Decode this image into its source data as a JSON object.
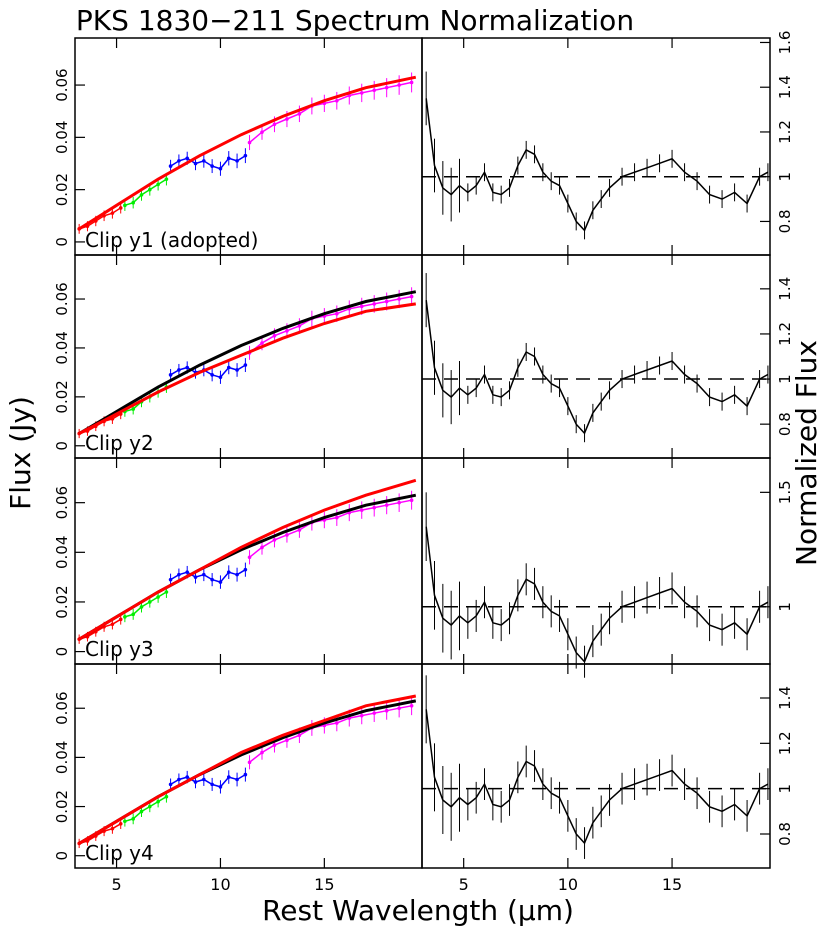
{
  "title": "PKS 1830−211 Spectrum Normalization",
  "xlabel": "Rest Wavelength (μm)",
  "ylabel_left": "Flux (Jy)",
  "ylabel_right": "Normalized Flux",
  "colors": {
    "SL2": "#ff0000",
    "SL1": "#00ee00",
    "LL2": "#0000ff",
    "LL1": "#ff00ff",
    "fit": "#ff0000",
    "adopted_fit": "#000000",
    "normalized": "#000000"
  },
  "chart_data": {
    "type": "line",
    "xlim": [
      3.0,
      19.7
    ],
    "x_ticks": [
      5,
      10,
      15
    ],
    "x_tick_labels": [
      "5",
      "10",
      "15"
    ],
    "flux_panels": [
      {
        "label": "Clip y1  (adopted)",
        "ylim": [
          -0.005,
          0.078
        ],
        "y_ticks": [
          0,
          0.02,
          0.04,
          0.06
        ],
        "y_tick_labels": [
          "0",
          "0.02",
          "0.04",
          "0.06"
        ],
        "show_adopted_fit": false,
        "fit_curve": {
          "x": [
            3.2,
            5,
            7,
            9,
            11,
            13,
            15,
            17,
            19.4
          ],
          "y": [
            0.005,
            0.014,
            0.024,
            0.033,
            0.041,
            0.048,
            0.054,
            0.059,
            0.063
          ]
        }
      },
      {
        "label": "Clip y2",
        "ylim": [
          -0.005,
          0.078
        ],
        "y_ticks": [
          0,
          0.02,
          0.04,
          0.06
        ],
        "y_tick_labels": [
          "0",
          "0.02",
          "0.04",
          "0.06"
        ],
        "show_adopted_fit": true,
        "fit_curve": {
          "x": [
            3.2,
            5,
            7,
            9,
            11,
            13,
            15,
            17,
            19.4
          ],
          "y": [
            0.005,
            0.013,
            0.022,
            0.03,
            0.037,
            0.044,
            0.05,
            0.055,
            0.058
          ]
        }
      },
      {
        "label": "Clip y3",
        "ylim": [
          -0.005,
          0.078
        ],
        "y_ticks": [
          0,
          0.02,
          0.04,
          0.06
        ],
        "y_tick_labels": [
          "0",
          "0.02",
          "0.04",
          "0.06"
        ],
        "show_adopted_fit": true,
        "fit_curve": {
          "x": [
            3.2,
            5,
            7,
            9,
            11,
            13,
            15,
            17,
            19.4
          ],
          "y": [
            0.005,
            0.014,
            0.024,
            0.033,
            0.042,
            0.05,
            0.057,
            0.063,
            0.069
          ]
        }
      },
      {
        "label": "Clip y4",
        "ylim": [
          -0.005,
          0.078
        ],
        "y_ticks": [
          0,
          0.02,
          0.04,
          0.06
        ],
        "y_tick_labels": [
          "0",
          "0.02",
          "0.04",
          "0.06"
        ],
        "show_adopted_fit": true,
        "fit_curve": {
          "x": [
            3.2,
            5,
            7,
            9,
            11,
            13,
            15,
            17,
            19.4
          ],
          "y": [
            0.005,
            0.014,
            0.024,
            0.033,
            0.042,
            0.049,
            0.055,
            0.061,
            0.065
          ]
        }
      }
    ],
    "adopted_fit": {
      "x": [
        3.2,
        5,
        7,
        9,
        11,
        13,
        15,
        17,
        19.4
      ],
      "y": [
        0.005,
        0.014,
        0.024,
        0.033,
        0.041,
        0.048,
        0.054,
        0.059,
        0.063
      ]
    },
    "flux_spectrum": {
      "SL2": {
        "x": [
          3.2,
          3.6,
          4.0,
          4.4,
          4.8,
          5.2
        ],
        "y": [
          0.005,
          0.006,
          0.008,
          0.01,
          0.011,
          0.013
        ]
      },
      "SL1": {
        "x": [
          5.4,
          5.8,
          6.2,
          6.6,
          7.0,
          7.4
        ],
        "y": [
          0.014,
          0.015,
          0.018,
          0.02,
          0.022,
          0.024
        ]
      },
      "LL2": {
        "x": [
          7.6,
          8.0,
          8.4,
          8.8,
          9.2,
          9.6,
          10.0,
          10.4,
          10.8,
          11.2
        ],
        "y": [
          0.029,
          0.031,
          0.032,
          0.03,
          0.031,
          0.029,
          0.028,
          0.032,
          0.031,
          0.033
        ]
      },
      "LL1": {
        "x": [
          11.4,
          12.0,
          12.6,
          13.2,
          13.8,
          14.4,
          15.0,
          15.6,
          16.2,
          16.8,
          17.4,
          18.0,
          18.6,
          19.2
        ],
        "y": [
          0.038,
          0.042,
          0.045,
          0.047,
          0.049,
          0.052,
          0.053,
          0.054,
          0.056,
          0.057,
          0.058,
          0.059,
          0.06,
          0.061
        ]
      }
    },
    "norm_panels": [
      {
        "ylim": [
          0.65,
          1.62
        ],
        "y_ticks": [
          0.8,
          1.0,
          1.2,
          1.4,
          1.6
        ],
        "y_tick_labels": [
          "0.8",
          "1",
          "1.2",
          "1.4",
          "1.6"
        ]
      },
      {
        "ylim": [
          0.65,
          1.55
        ],
        "y_ticks": [
          0.8,
          1.0,
          1.2,
          1.4
        ],
        "y_tick_labels": [
          "0.8",
          "1",
          "1.2",
          "1.4"
        ]
      },
      {
        "ylim": [
          0.75,
          1.65
        ],
        "y_ticks": [
          1.0,
          1.5
        ],
        "y_tick_labels": [
          "1",
          "1.5"
        ]
      },
      {
        "ylim": [
          0.65,
          1.55
        ],
        "y_ticks": [
          0.8,
          1.0,
          1.2,
          1.4
        ],
        "y_tick_labels": [
          "0.8",
          "1",
          "1.2",
          "1.4"
        ]
      }
    ],
    "normalized_spectrum": {
      "x": [
        3.2,
        3.6,
        4.0,
        4.4,
        4.8,
        5.2,
        5.6,
        6.0,
        6.4,
        6.8,
        7.2,
        7.6,
        8.0,
        8.4,
        8.8,
        9.2,
        9.6,
        10.0,
        10.4,
        10.8,
        11.2,
        11.6,
        12.0,
        12.6,
        13.2,
        13.8,
        14.4,
        15.0,
        15.6,
        16.2,
        16.8,
        17.4,
        18.0,
        18.6,
        19.2,
        19.6
      ],
      "y": [
        1.35,
        1.05,
        0.95,
        0.92,
        0.96,
        0.93,
        0.96,
        1.02,
        0.93,
        0.92,
        0.95,
        1.05,
        1.12,
        1.1,
        1.02,
        0.98,
        0.96,
        0.88,
        0.8,
        0.76,
        0.85,
        0.9,
        0.95,
        1.0,
        1.02,
        1.04,
        1.06,
        1.08,
        1.02,
        0.98,
        0.92,
        0.9,
        0.93,
        0.88,
        1.0,
        1.02
      ]
    },
    "reference_level": 1.0
  }
}
